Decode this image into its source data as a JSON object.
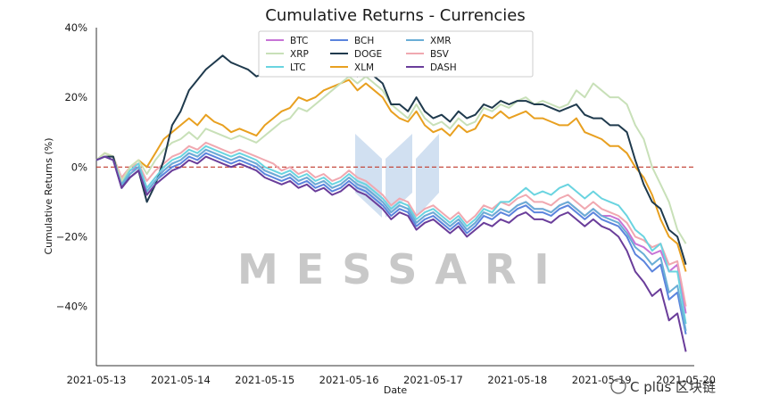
{
  "chart_data": {
    "type": "line",
    "title": "Cumulative Returns - Currencies",
    "xlabel": "Date",
    "ylabel": "Cumulative Returns (%)",
    "x_ticks": [
      "2021-05-13",
      "2021-05-14",
      "2021-05-15",
      "2021-05-16",
      "2021-05-17",
      "2021-05-18",
      "2021-05-19",
      "2021-05-20"
    ],
    "y_ticks": [
      "40%",
      "20%",
      "0%",
      "−20%",
      "−40%"
    ],
    "ylim": [
      -57,
      40
    ],
    "xlim": [
      0,
      7.1
    ],
    "grid": false,
    "zero_line": {
      "value": 0,
      "color": "#c0392b",
      "style": "dashed"
    },
    "legend_position": "top-center",
    "x": [
      0.0,
      0.1,
      0.2,
      0.3,
      0.4,
      0.5,
      0.6,
      0.7,
      0.8,
      0.9,
      1.0,
      1.1,
      1.2,
      1.3,
      1.4,
      1.5,
      1.6,
      1.7,
      1.8,
      1.9,
      2.0,
      2.1,
      2.2,
      2.3,
      2.4,
      2.5,
      2.6,
      2.7,
      2.8,
      2.9,
      3.0,
      3.1,
      3.2,
      3.3,
      3.4,
      3.5,
      3.6,
      3.7,
      3.8,
      3.9,
      4.0,
      4.1,
      4.2,
      4.3,
      4.4,
      4.5,
      4.6,
      4.7,
      4.8,
      4.9,
      5.0,
      5.1,
      5.2,
      5.3,
      5.4,
      5.5,
      5.6,
      5.7,
      5.8,
      5.9,
      6.0,
      6.1,
      6.2,
      6.3,
      6.4,
      6.5,
      6.6,
      6.7,
      6.8,
      6.9,
      7.0
    ],
    "series": [
      {
        "name": "BTC",
        "color": "#c774d6",
        "values": [
          2,
          3,
          2,
          -5,
          -1,
          0,
          -6,
          -3,
          -1,
          1,
          2,
          4,
          3,
          5,
          4,
          3,
          2,
          3,
          2,
          1,
          -1,
          -2,
          -3,
          -2,
          -4,
          -3,
          -5,
          -4,
          -6,
          -5,
          -3,
          -5,
          -6,
          -8,
          -10,
          -13,
          -11,
          -12,
          -16,
          -14,
          -13,
          -15,
          -17,
          -15,
          -18,
          -16,
          -13,
          -14,
          -12,
          -13,
          -11,
          -10,
          -12,
          -12,
          -13,
          -11,
          -10,
          -12,
          -14,
          -12,
          -14,
          -14,
          -15,
          -18,
          -22,
          -23,
          -25,
          -24,
          -30,
          -28,
          -42
        ]
      },
      {
        "name": "BCH",
        "color": "#5b84dd",
        "values": [
          2,
          3,
          2,
          -6,
          -2,
          0,
          -7,
          -4,
          -2,
          0,
          1,
          3,
          2,
          4,
          3,
          2,
          1,
          2,
          1,
          0,
          -2,
          -3,
          -4,
          -3,
          -5,
          -4,
          -6,
          -5,
          -7,
          -6,
          -4,
          -6,
          -7,
          -9,
          -11,
          -14,
          -12,
          -13,
          -17,
          -15,
          -14,
          -16,
          -18,
          -16,
          -19,
          -17,
          -14,
          -15,
          -13,
          -14,
          -12,
          -11,
          -13,
          -13,
          -14,
          -12,
          -11,
          -13,
          -15,
          -13,
          -15,
          -16,
          -17,
          -20,
          -25,
          -27,
          -30,
          -28,
          -38,
          -36,
          -48
        ]
      },
      {
        "name": "XLM",
        "color": "#e8a020",
        "values": [
          2,
          4,
          3,
          -4,
          0,
          2,
          0,
          4,
          8,
          10,
          12,
          14,
          12,
          15,
          13,
          12,
          10,
          11,
          10,
          9,
          12,
          14,
          16,
          17,
          20,
          19,
          20,
          22,
          23,
          24,
          25,
          22,
          24,
          22,
          20,
          16,
          14,
          13,
          16,
          12,
          10,
          11,
          9,
          12,
          10,
          11,
          15,
          14,
          16,
          14,
          15,
          16,
          14,
          14,
          13,
          12,
          12,
          14,
          10,
          9,
          8,
          6,
          6,
          4,
          0,
          -3,
          -8,
          -15,
          -20,
          -22,
          -30
        ]
      },
      {
        "name": "BSV",
        "color": "#f0a8b0",
        "values": [
          2,
          3,
          3,
          -3,
          0,
          1,
          -4,
          -1,
          1,
          3,
          4,
          6,
          5,
          7,
          6,
          5,
          4,
          5,
          4,
          3,
          2,
          1,
          -1,
          0,
          -2,
          -1,
          -3,
          -2,
          -4,
          -3,
          -1,
          -3,
          -4,
          -6,
          -8,
          -11,
          -9,
          -10,
          -14,
          -12,
          -11,
          -13,
          -15,
          -13,
          -16,
          -14,
          -11,
          -12,
          -10,
          -11,
          -9,
          -8,
          -10,
          -10,
          -11,
          -9,
          -8,
          -10,
          -12,
          -10,
          -12,
          -13,
          -14,
          -16,
          -20,
          -21,
          -23,
          -22,
          -28,
          -27,
          -40
        ]
      },
      {
        "name": "XRP",
        "color": "#c8e0b8",
        "values": [
          2,
          4,
          3,
          -4,
          0,
          2,
          -2,
          2,
          5,
          7,
          8,
          10,
          8,
          11,
          10,
          9,
          8,
          9,
          8,
          7,
          9,
          11,
          13,
          14,
          17,
          16,
          18,
          20,
          22,
          24,
          26,
          24,
          26,
          24,
          22,
          18,
          16,
          14,
          18,
          14,
          12,
          13,
          11,
          14,
          12,
          13,
          17,
          16,
          18,
          17,
          19,
          20,
          18,
          19,
          18,
          17,
          18,
          22,
          20,
          24,
          22,
          20,
          20,
          18,
          12,
          8,
          0,
          -5,
          -10,
          -18,
          -22
        ]
      },
      {
        "name": "DOGE",
        "color": "#1f3a4d",
        "values": [
          2,
          3,
          3,
          -6,
          -3,
          -1,
          -10,
          -5,
          2,
          12,
          16,
          22,
          25,
          28,
          30,
          32,
          30,
          29,
          28,
          26,
          27,
          29,
          30,
          31,
          28,
          27,
          29,
          30,
          31,
          32,
          30,
          26,
          28,
          26,
          24,
          18,
          18,
          16,
          20,
          16,
          14,
          15,
          13,
          16,
          14,
          15,
          18,
          17,
          19,
          18,
          19,
          19,
          18,
          18,
          17,
          16,
          17,
          18,
          15,
          14,
          14,
          12,
          12,
          10,
          2,
          -5,
          -10,
          -12,
          -18,
          -20,
          -28
        ]
      },
      {
        "name": "LTC",
        "color": "#6ad4e0",
        "values": [
          2,
          3,
          2,
          -5,
          -1,
          1,
          -6,
          -3,
          0,
          2,
          3,
          5,
          4,
          6,
          5,
          4,
          3,
          4,
          3,
          2,
          0,
          -1,
          -2,
          -1,
          -3,
          -2,
          -4,
          -3,
          -5,
          -4,
          -2,
          -4,
          -5,
          -7,
          -9,
          -12,
          -10,
          -11,
          -15,
          -13,
          -12,
          -14,
          -16,
          -14,
          -17,
          -15,
          -12,
          -13,
          -10,
          -10,
          -8,
          -6,
          -8,
          -7,
          -8,
          -6,
          -5,
          -7,
          -9,
          -7,
          -9,
          -10,
          -11,
          -14,
          -18,
          -20,
          -24,
          -22,
          -30,
          -30,
          -45
        ]
      },
      {
        "name": "XMR",
        "color": "#6aaed6",
        "values": [
          2,
          3,
          2,
          -5,
          -2,
          0,
          -7,
          -4,
          -1,
          1,
          2,
          4,
          3,
          5,
          4,
          3,
          2,
          3,
          2,
          1,
          -1,
          -2,
          -3,
          -2,
          -4,
          -3,
          -5,
          -4,
          -6,
          -5,
          -3,
          -5,
          -6,
          -8,
          -10,
          -13,
          -11,
          -12,
          -16,
          -14,
          -13,
          -15,
          -17,
          -15,
          -18,
          -16,
          -13,
          -14,
          -12,
          -13,
          -11,
          -10,
          -12,
          -12,
          -13,
          -11,
          -10,
          -12,
          -14,
          -12,
          -14,
          -15,
          -16,
          -19,
          -23,
          -25,
          -28,
          -26,
          -36,
          -34,
          -47
        ]
      },
      {
        "name": "DASH",
        "color": "#6a3d9a",
        "values": [
          2,
          3,
          2,
          -6,
          -3,
          -1,
          -8,
          -5,
          -3,
          -1,
          0,
          2,
          1,
          3,
          2,
          1,
          0,
          1,
          0,
          -1,
          -3,
          -4,
          -5,
          -4,
          -6,
          -5,
          -7,
          -6,
          -8,
          -7,
          -5,
          -7,
          -8,
          -10,
          -12,
          -15,
          -13,
          -14,
          -18,
          -16,
          -15,
          -17,
          -19,
          -17,
          -20,
          -18,
          -16,
          -17,
          -15,
          -16,
          -14,
          -13,
          -15,
          -15,
          -16,
          -14,
          -13,
          -15,
          -17,
          -15,
          -17,
          -18,
          -20,
          -24,
          -30,
          -33,
          -37,
          -35,
          -44,
          -42,
          -53
        ]
      }
    ]
  },
  "watermark": {
    "text": "MESSARI"
  },
  "footer": {
    "text": "C plus 区块链"
  },
  "colors": {
    "zero_line": "#c0392b",
    "watermark_logo": "#c9dbef",
    "watermark_text": "#c8c8c8"
  }
}
